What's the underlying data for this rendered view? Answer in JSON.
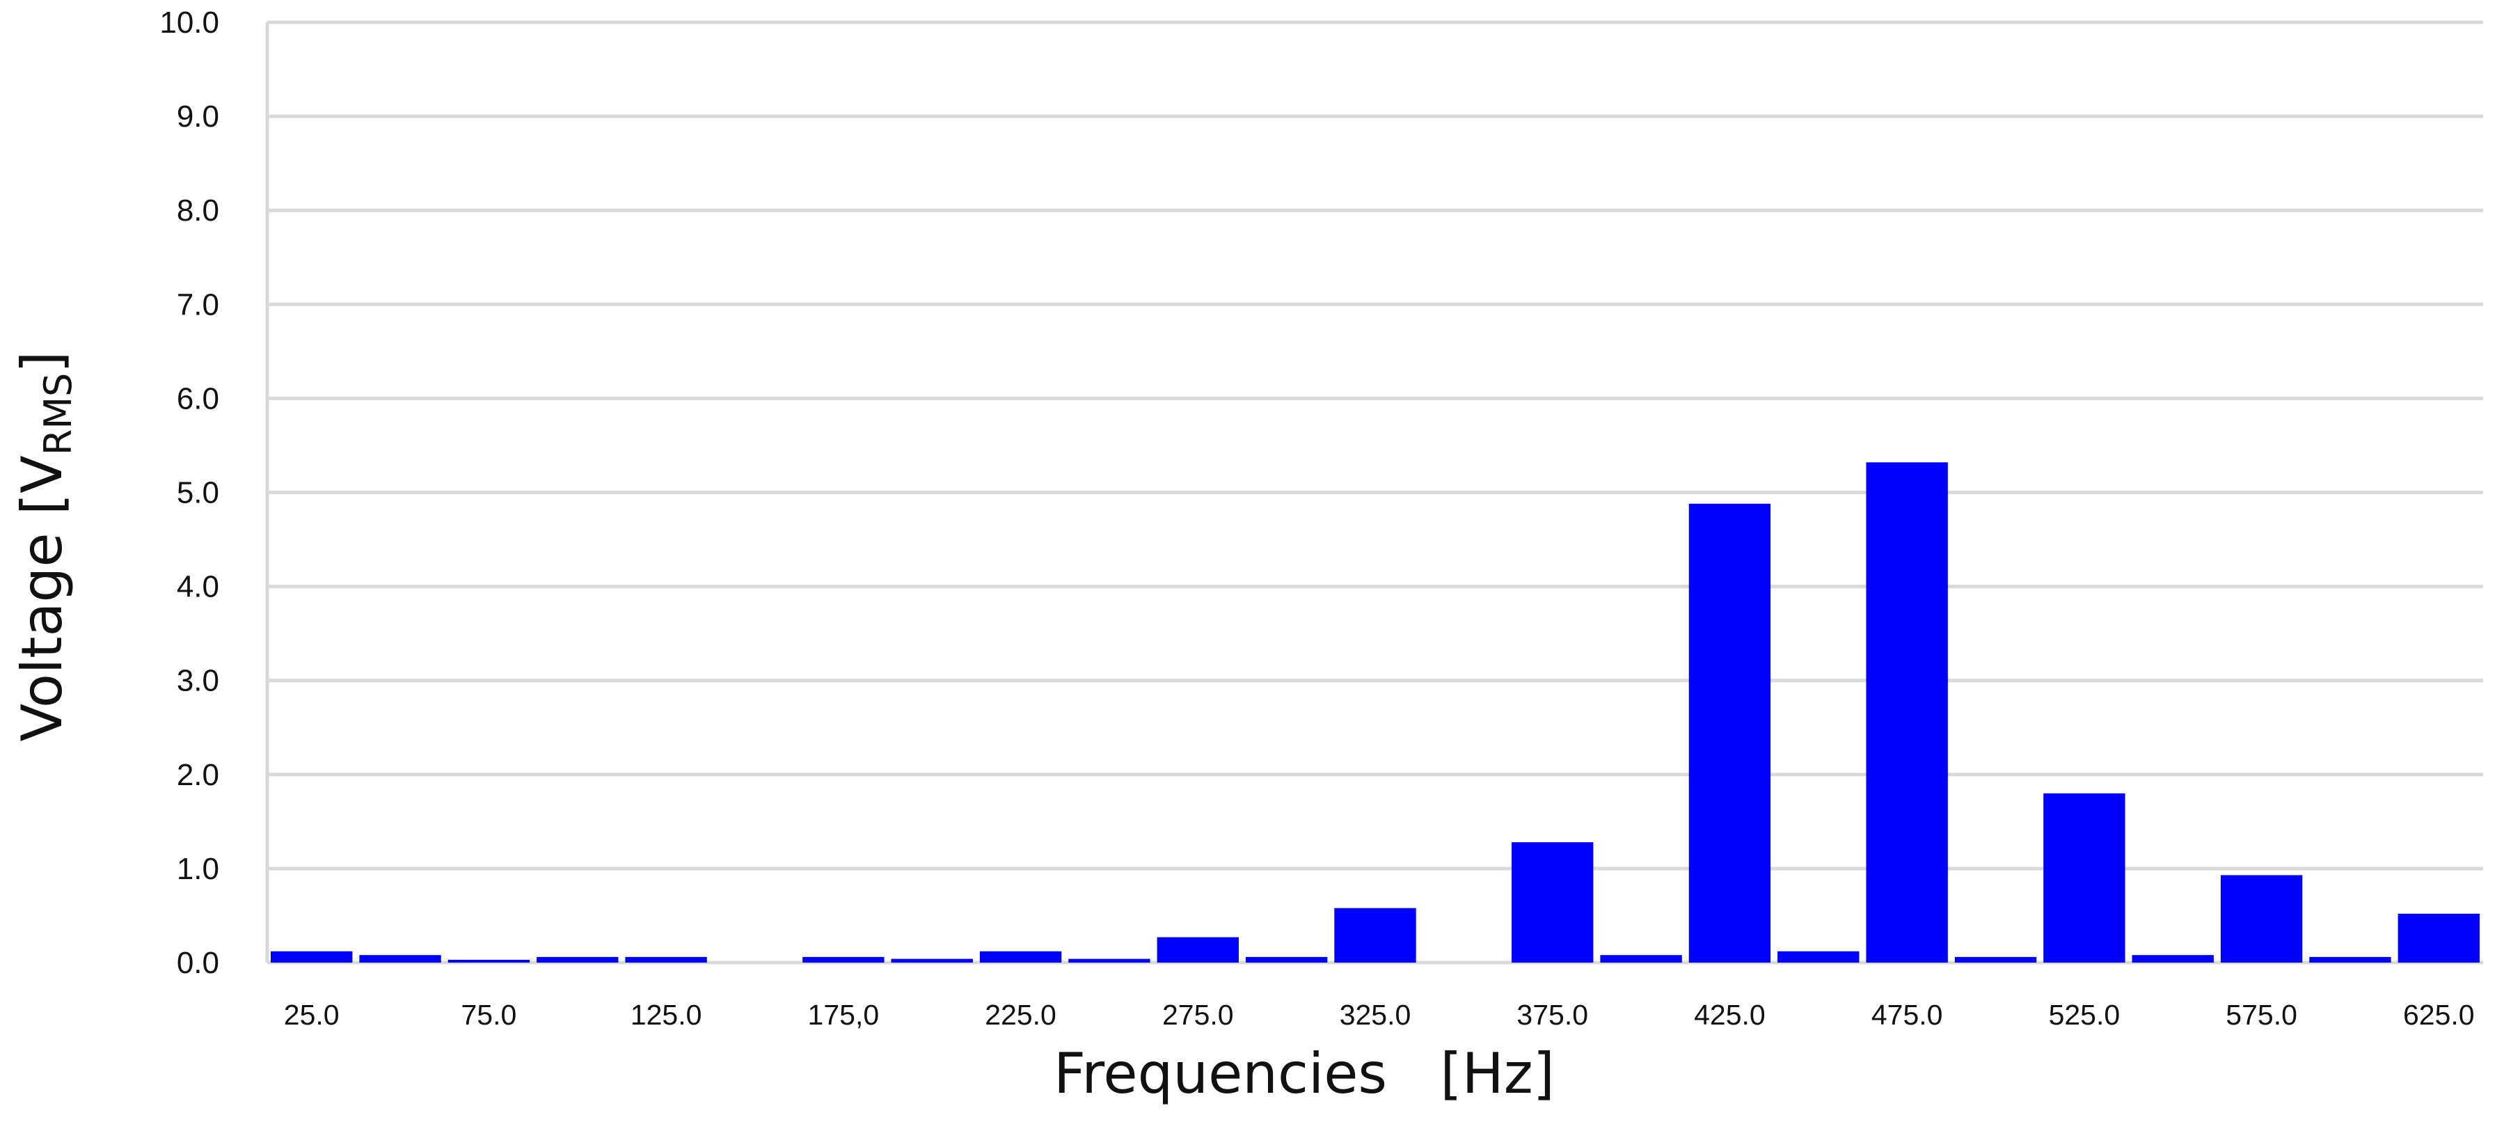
{
  "chart_data": {
    "type": "bar",
    "title": "",
    "xlabel": "Frequencies   [Hz]",
    "ylabel": {
      "main": "Voltage [V",
      "sub": "RMS",
      "close": "]"
    },
    "x": [
      25,
      50,
      75,
      100,
      125,
      150,
      175,
      200,
      225,
      250,
      275,
      300,
      325,
      350,
      375,
      400,
      425,
      450,
      475,
      500,
      525,
      550,
      575,
      600,
      625
    ],
    "x_tick_labels": [
      "25.0",
      "75.0",
      "125.0",
      "175,0",
      "225.0",
      "275.0",
      "325.0",
      "375.0",
      "425.0",
      "475.0",
      "525.0",
      "575.0",
      "625.0"
    ],
    "y_tick_labels": [
      "0.0",
      "1.0",
      "2.0",
      "3.0",
      "4.0",
      "5.0",
      "6.0",
      "7.0",
      "8.0",
      "9.0",
      "10.0"
    ],
    "values": [
      0.12,
      0.08,
      0.03,
      0.06,
      0.06,
      0.0,
      0.06,
      0.04,
      0.12,
      0.04,
      0.27,
      0.06,
      0.58,
      0.0,
      1.28,
      0.08,
      4.88,
      0.12,
      5.32,
      0.06,
      1.8,
      0.08,
      0.93,
      0.06,
      0.52
    ],
    "ylim": [
      0,
      10
    ],
    "grid": true,
    "bar_color": "#0000ff",
    "grid_color": "#d9d9d9"
  }
}
